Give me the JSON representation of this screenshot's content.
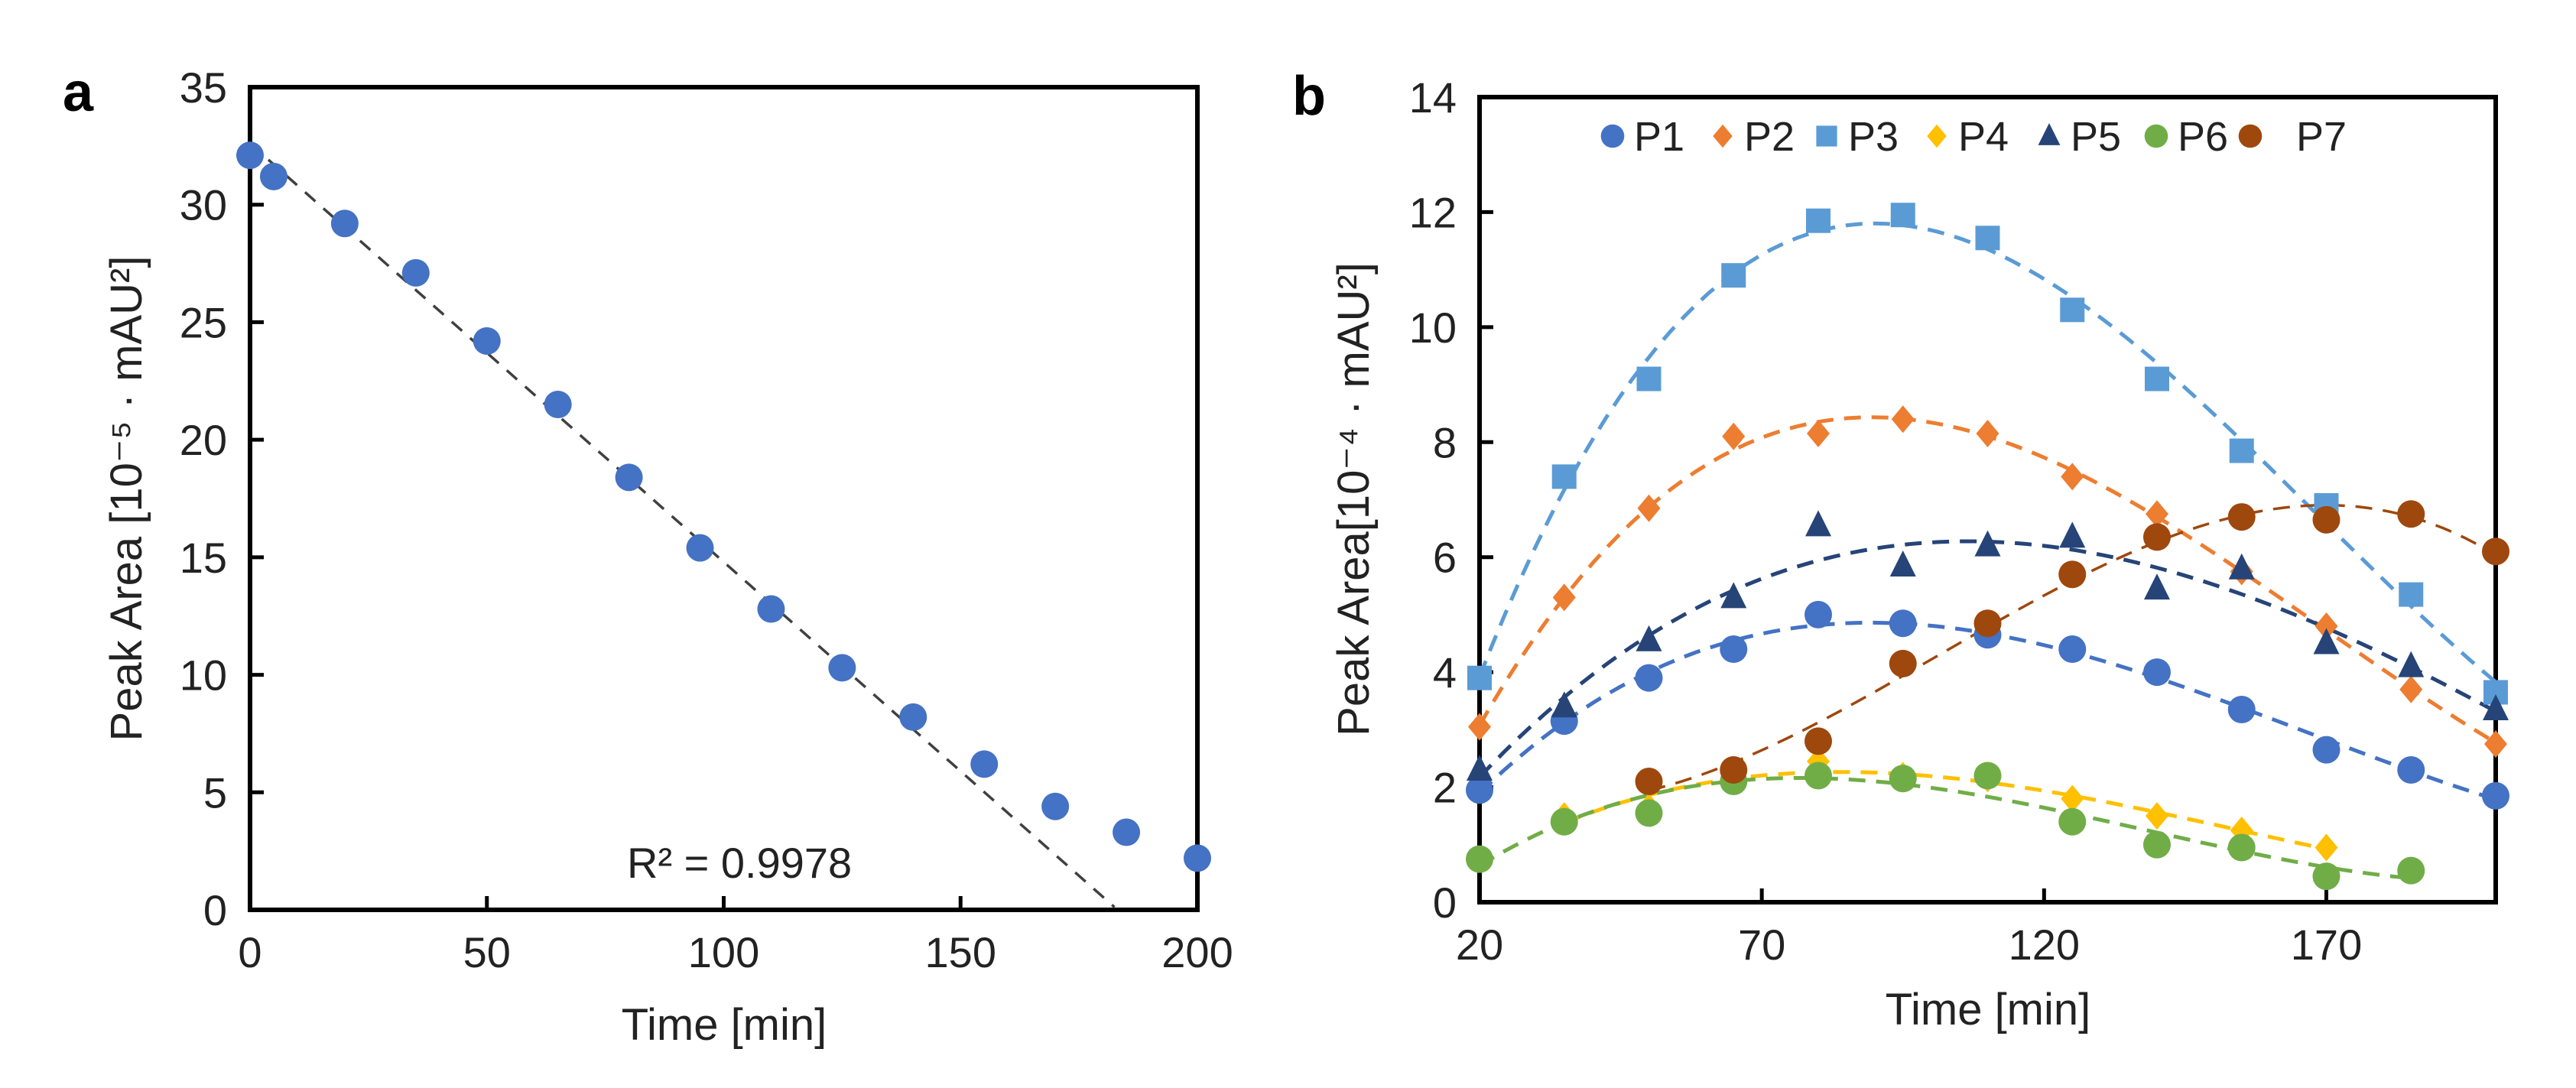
{
  "chart_data": [
    {
      "panel_label": "a",
      "type": "scatter",
      "xlabel": "Time [min]",
      "ylabel": "Peak Area [10⁻⁵ · mAU²]",
      "xlim": [
        0,
        200
      ],
      "ylim": [
        0,
        35
      ],
      "xticks": [
        0,
        50,
        100,
        150,
        200
      ],
      "yticks": [
        0,
        5,
        10,
        15,
        20,
        25,
        30,
        35
      ],
      "grid": false,
      "series": [
        {
          "name": "Peak Area",
          "color": "#4472C4",
          "marker": "circle",
          "x": [
            0,
            5,
            20,
            35,
            50,
            65,
            80,
            95,
            110,
            125,
            140,
            155,
            170,
            185,
            200
          ],
          "y": [
            32.1,
            31.2,
            29.2,
            27.1,
            24.2,
            21.5,
            18.4,
            15.4,
            12.8,
            10.3,
            8.2,
            6.2,
            4.4,
            3.3,
            2.2
          ]
        }
      ],
      "trendline": {
        "type": "linear",
        "intercept": 32.6,
        "slope": -0.178,
        "x_end": 182.5,
        "color": "#404040"
      },
      "annotation": "R² = 0.9978"
    },
    {
      "panel_label": "b",
      "type": "scatter",
      "xlabel": "Time [min]",
      "ylabel": "Peak Area[10⁻⁴ · mAU²]",
      "xlim": [
        20,
        200
      ],
      "ylim": [
        0,
        14
      ],
      "xticks": [
        20,
        70,
        120,
        170
      ],
      "yticks": [
        0,
        2,
        4,
        6,
        8,
        10,
        12,
        14
      ],
      "grid": false,
      "legend": "top",
      "trendline": {
        "type": "polynomial",
        "order": 3
      },
      "series": [
        {
          "name": "P1",
          "color": "#4472C4",
          "marker": "circle",
          "x": [
            20,
            35,
            50,
            65,
            80,
            95,
            110,
            125,
            140,
            155,
            170,
            185,
            200
          ],
          "y": [
            1.95,
            3.15,
            3.9,
            4.4,
            5.0,
            4.85,
            4.65,
            4.4,
            4.0,
            3.35,
            2.65,
            2.3,
            1.85
          ]
        },
        {
          "name": "P2",
          "color": "#ED7D31",
          "marker": "diamond",
          "x": [
            20,
            35,
            50,
            65,
            80,
            95,
            110,
            125,
            140,
            155,
            170,
            185,
            200
          ],
          "y": [
            3.05,
            5.3,
            6.85,
            8.1,
            8.15,
            8.4,
            8.15,
            7.4,
            6.75,
            5.75,
            4.8,
            3.7,
            2.75
          ]
        },
        {
          "name": "P3",
          "color": "#5B9BD5",
          "marker": "square",
          "x": [
            20,
            35,
            50,
            65,
            80,
            95,
            110,
            125,
            140,
            155,
            170,
            185,
            200
          ],
          "y": [
            3.9,
            7.4,
            9.1,
            10.9,
            11.85,
            11.95,
            11.55,
            10.3,
            9.1,
            7.85,
            6.9,
            5.35,
            3.65
          ]
        },
        {
          "name": "P4",
          "color": "#FFC000",
          "marker": "diamond",
          "x": [
            35,
            50,
            65,
            80,
            95,
            110,
            125,
            140,
            155,
            170
          ],
          "y": [
            1.5,
            1.65,
            2.1,
            2.45,
            2.2,
            2.15,
            1.8,
            1.5,
            1.25,
            0.95
          ]
        },
        {
          "name": "P5",
          "color": "#264478",
          "marker": "triangle",
          "x": [
            20,
            35,
            50,
            65,
            80,
            95,
            110,
            125,
            140,
            155,
            170,
            185,
            200
          ],
          "y": [
            2.3,
            3.4,
            4.55,
            5.3,
            6.55,
            5.85,
            6.2,
            6.35,
            5.45,
            5.8,
            4.5,
            4.1,
            3.35
          ]
        },
        {
          "name": "P6",
          "color": "#70AD47",
          "marker": "circle",
          "x": [
            20,
            35,
            50,
            65,
            80,
            95,
            110,
            125,
            140,
            155,
            170,
            185
          ],
          "y": [
            0.75,
            1.4,
            1.55,
            2.1,
            2.2,
            2.15,
            2.2,
            1.4,
            1.0,
            0.95,
            0.45,
            0.55
          ]
        },
        {
          "name": "P7",
          "color": "#9E480E",
          "marker": "circle",
          "x": [
            50,
            65,
            80,
            95,
            110,
            125,
            140,
            155,
            170,
            185,
            200
          ],
          "y": [
            2.1,
            2.3,
            2.8,
            4.15,
            4.85,
            5.7,
            6.35,
            6.7,
            6.65,
            6.75,
            6.1
          ]
        }
      ]
    }
  ]
}
